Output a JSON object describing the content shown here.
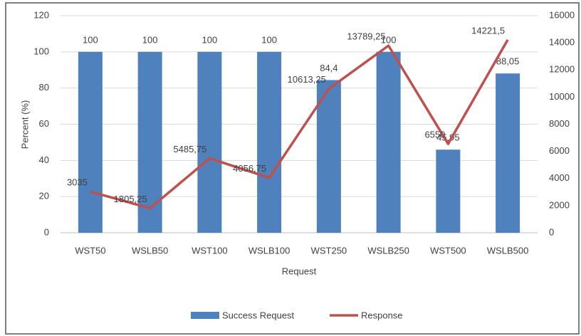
{
  "chart_data": {
    "type": "combo",
    "categories": [
      "WST50",
      "WSLB50",
      "WST100",
      "WSLB100",
      "WST250",
      "WSLB250",
      "WST500",
      "WSLB500"
    ],
    "series": [
      {
        "name": "Success Request",
        "type": "bar",
        "color": "#4f81bd",
        "values": [
          100,
          100,
          100,
          100,
          84.4,
          100,
          45.95,
          88.05
        ],
        "value_labels": [
          "100",
          "100",
          "100",
          "100",
          "84,4",
          "100",
          "45,95",
          "88,05"
        ]
      },
      {
        "name": "Response",
        "type": "line",
        "axis": "y2",
        "color": "#c0504d",
        "values": [
          3035,
          1805.25,
          5485.75,
          4056.75,
          10613.25,
          13789.25,
          6550,
          14221.5
        ],
        "value_labels": [
          "3035",
          "1805,25",
          "5485,75",
          "4056,75",
          "10613,25",
          "13789,25",
          "6550",
          "14221,5"
        ]
      }
    ],
    "xlabel": "Request",
    "ylabel": "Percent (%)",
    "ylim": [
      0,
      120
    ],
    "yticks": [
      0,
      20,
      40,
      60,
      80,
      100,
      120
    ],
    "y2lim": [
      0,
      16000
    ],
    "y2ticks": [
      0,
      2000,
      4000,
      6000,
      8000,
      10000,
      12000,
      14000,
      16000
    ],
    "grid": true,
    "legend": "bottom"
  }
}
